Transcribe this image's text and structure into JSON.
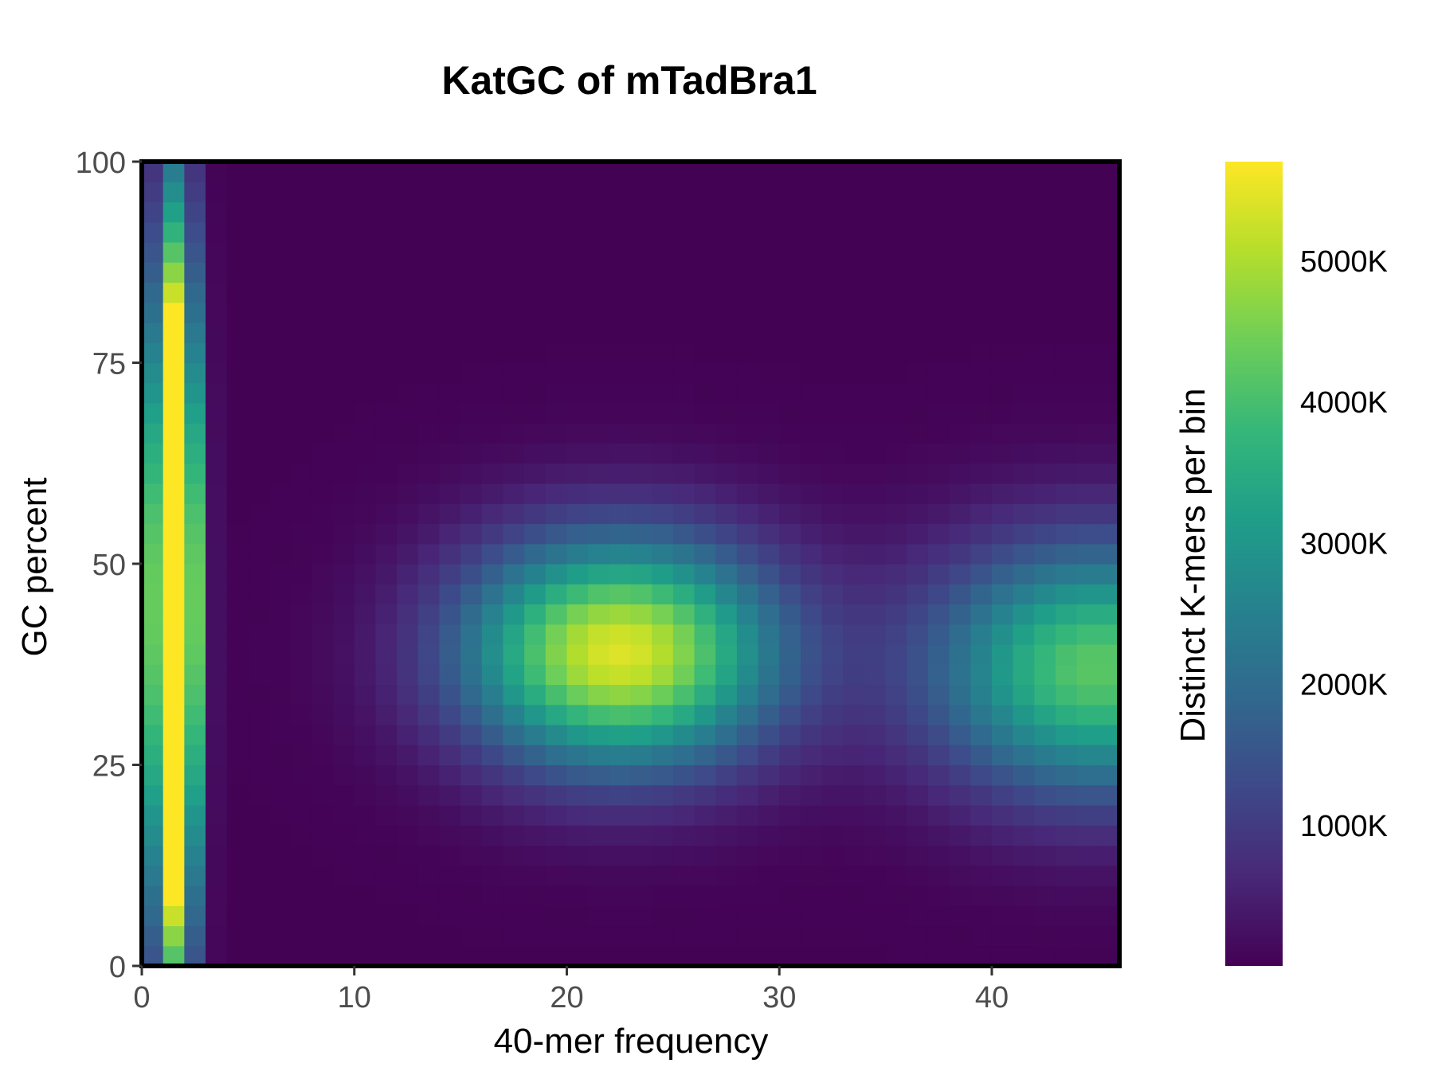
{
  "chart_data": {
    "type": "heatmap",
    "title": "KatGC of mTadBra1",
    "xlabel": "40-mer frequency",
    "ylabel": "GC percent",
    "xlim": [
      0,
      46
    ],
    "ylim": [
      0,
      100
    ],
    "x_ticks": [
      "0",
      "10",
      "20",
      "30",
      "40"
    ],
    "x_tick_values": [
      0,
      10,
      20,
      30,
      40
    ],
    "y_ticks": [
      "0",
      "25",
      "50",
      "75",
      "100"
    ],
    "y_tick_values": [
      0,
      25,
      50,
      75,
      100
    ],
    "bin_width_x": 1,
    "bin_height_y": 2.5,
    "colormap": "viridis",
    "legend": {
      "title": "Distinct K-mers per bin",
      "position": "right",
      "ticks": [
        "1000K",
        "2000K",
        "3000K",
        "4000K",
        "5000K"
      ],
      "tick_values": [
        1000,
        2000,
        3000,
        4000,
        5000
      ],
      "range": [
        0,
        5700
      ]
    },
    "peaks": [
      {
        "x": 1.5,
        "y": 45,
        "value": 12000,
        "sx": 0.7,
        "sy": 30
      },
      {
        "x": 22.5,
        "y": 39,
        "value": 5400,
        "sx": 5.2,
        "sy": 10
      },
      {
        "x": 45,
        "y": 37,
        "value": 4200,
        "sx": 5.5,
        "sy": 11
      }
    ]
  },
  "colors": {
    "border": "#000000",
    "viridis_stops": [
      "#440154",
      "#482878",
      "#3e4989",
      "#31688e",
      "#26828e",
      "#1f9e89",
      "#35b779",
      "#6ece58",
      "#b5de2b",
      "#fde725"
    ]
  }
}
